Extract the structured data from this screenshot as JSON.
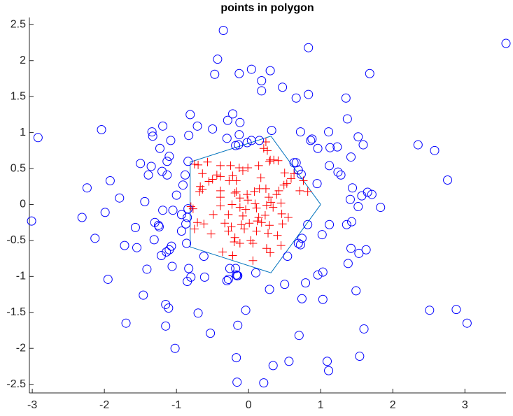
{
  "chart_data": {
    "type": "scatter",
    "title": "points in polygon",
    "xlim": [
      -3.04,
      3.57
    ],
    "ylim": [
      -2.62,
      2.6
    ],
    "xticks": [
      -3,
      -2,
      -1,
      0,
      1,
      2,
      3
    ],
    "yticks": [
      -2.5,
      -2,
      -1.5,
      -1,
      -0.5,
      0,
      0.5,
      1,
      1.5,
      2,
      2.5
    ],
    "grid": false,
    "series": [
      {
        "style": "line",
        "color": "#0072bd",
        "x": [
          1,
          0.31,
          -0.81,
          -0.81,
          0.31,
          1
        ],
        "values": [
          0,
          0.95,
          0.59,
          -0.59,
          -0.95,
          0
        ]
      },
      {
        "style": "plus",
        "color": "#ff0000",
        "x": [
          0.24,
          0.21,
          0.26,
          0.3,
          0.35,
          0.41,
          0.29,
          -0.7,
          -0.57,
          -0.75,
          -0.39,
          -0.25,
          -0.13,
          -0.01,
          -0.08,
          0.14,
          -0.64,
          -0.44,
          -0.39,
          -0.22,
          -0.5,
          -0.27,
          -0.55,
          -0.17,
          0.17,
          0.5,
          0.53,
          0.49,
          0.42,
          0.39,
          0.59,
          0.63,
          0.76,
          0.71,
          0.82,
          -0.67,
          -0.68,
          -0.39,
          -0.19,
          -0.02,
          0.08,
          0.15,
          0.24,
          -0.39,
          -0.12,
          -0.01,
          0.28,
          -0.8,
          -0.77,
          -0.39,
          -0.23,
          -0.12,
          -0.04,
          0.09,
          0.11,
          0.25,
          0.31,
          0.34,
          0.45,
          -0.49,
          -0.28,
          -0.08,
          0.14,
          0.23,
          0.46,
          0.55,
          -0.71,
          -0.62,
          -0.33,
          -0.24,
          -0.1,
          0.01,
          0.12,
          0.18,
          0.29,
          0.47,
          -0.75,
          -0.52,
          -0.28,
          -0.19,
          -0.06,
          0.11,
          0.27,
          0.4,
          0.03,
          -0.2,
          -0.12,
          0.06,
          0.25,
          0.3,
          0.45,
          -0.36,
          -0.22,
          0.06,
          -0.64,
          -0.17
        ],
        "values": [
          0.87,
          0.78,
          0.75,
          0.62,
          0.62,
          0.61,
          0.6,
          0.55,
          0.59,
          0.56,
          0.54,
          0.54,
          0.51,
          0.51,
          0.47,
          0.54,
          0.43,
          0.41,
          0.39,
          0.4,
          0.35,
          0.33,
          0.32,
          0.33,
          0.37,
          0.44,
          0.29,
          0.27,
          0.19,
          0.14,
          0.36,
          0.43,
          0.33,
          0.19,
          0.18,
          0.25,
          0.18,
          0.19,
          0.16,
          0.14,
          0.18,
          0.22,
          0.22,
          0.1,
          0.09,
          0.06,
          0.1,
          -0.03,
          -0.06,
          -0.02,
          0,
          -0.04,
          -0.07,
          0.01,
          -0.05,
          -0.01,
          0.03,
          -0.04,
          0.02,
          -0.14,
          -0.14,
          -0.16,
          -0.18,
          -0.15,
          -0.13,
          -0.18,
          -0.25,
          -0.27,
          -0.26,
          -0.31,
          -0.28,
          -0.26,
          -0.23,
          -0.25,
          -0.29,
          -0.27,
          -0.34,
          -0.41,
          -0.37,
          -0.46,
          -0.34,
          -0.37,
          -0.4,
          -0.43,
          -0.5,
          -0.52,
          -0.54,
          -0.54,
          -0.61,
          -0.67,
          -0.57,
          -0.66,
          -0.71,
          -0.78,
          0.21,
          0.18
        ]
      },
      {
        "style": "circle",
        "color": "#0000ff",
        "x": [
          -0.35,
          0.83,
          3.57,
          -0.43,
          -0.47,
          -0.13,
          0.04,
          0.3,
          0.18,
          0.18,
          0.47,
          1.68,
          0.66,
          0.83,
          1.35,
          -0.81,
          -0.22,
          -0.29,
          -0.12,
          1.37,
          -2.04,
          -2.92,
          -1.19,
          -1.34,
          -1.33,
          -0.71,
          -0.83,
          -0.5,
          -0.13,
          0.32,
          0.72,
          1.11,
          -0.3,
          -0.14,
          -0.18,
          -0.02,
          0.04,
          0.15,
          0.86,
          0.88,
          1.52,
          1.59,
          2.35,
          2.58,
          -1.08,
          -1.23,
          0.96,
          1.13,
          1.23,
          1.42,
          -1.1,
          -1.13,
          -1.5,
          -1.35,
          -0.84,
          0.66,
          0.63,
          1.12,
          0.69,
          -1.2,
          -1.13,
          -1.39,
          1.24,
          1.28,
          0.73,
          -0.88,
          -1.92,
          0.95,
          2.76,
          -0.91,
          -2.24,
          1.44,
          1.65,
          1.71,
          1.57,
          -1.79,
          1.41,
          -1.44,
          -1.0,
          1.52,
          1.83,
          -1.19,
          -1.99,
          -0.93,
          -0.84,
          -1.05,
          -0.85,
          -3.01,
          -2.31,
          -1.57,
          -1.3,
          -1.25,
          -1.24,
          -0.87,
          1.43,
          1.12,
          1.36,
          0.82,
          -0.93,
          1.02,
          -2.13,
          -1.31,
          -1.72,
          -1.55,
          -1.07,
          -1.1,
          -1.14,
          -0.86,
          0.72,
          0.69,
          0.74,
          1.42,
          1.63,
          1.53,
          -1.21,
          -0.62,
          0.54,
          -1.06,
          1.38,
          -0.83,
          -0.26,
          -0.18,
          1.03,
          -0.8,
          -0.61,
          -0.17,
          -0.16,
          -0.15,
          0.1,
          0.96,
          -0.85,
          -0.28,
          -0.3,
          0.79,
          -1.95,
          -1.41,
          0.5,
          0.29,
          1.49,
          -1.46,
          0.74,
          1.03,
          -1.15,
          -1.11,
          -0.7,
          -0.04,
          2.51,
          2.88,
          3.03,
          -1.7,
          -1.15,
          -0.15,
          1.6,
          -0.53,
          0.7,
          -1.02,
          -0.17,
          1.54,
          0.56,
          1.09,
          0.34,
          1.11,
          -0.16,
          0.21
        ],
        "values": [
          2.42,
          2.18,
          2.24,
          2.02,
          1.81,
          1.82,
          1.88,
          1.86,
          1.72,
          1.58,
          1.63,
          1.82,
          1.48,
          1.53,
          1.48,
          1.25,
          1.26,
          1.17,
          1.14,
          1.19,
          1.04,
          0.93,
          1.09,
          1.01,
          0.95,
          1.09,
          0.96,
          1.05,
          0.97,
          1.03,
          1.01,
          1.01,
          0.92,
          0.83,
          0.82,
          0.86,
          0.89,
          0.89,
          0.89,
          0.91,
          0.94,
          0.83,
          0.83,
          0.75,
          0.89,
          0.78,
          0.78,
          0.79,
          0.8,
          0.66,
          0.67,
          0.6,
          0.57,
          0.53,
          0.6,
          0.58,
          0.58,
          0.54,
          0.48,
          0.46,
          0.41,
          0.41,
          0.45,
          0.41,
          0.42,
          0.41,
          0.33,
          0.29,
          0.34,
          0.27,
          0.23,
          0.23,
          0.17,
          0.14,
          0.12,
          0.09,
          0.07,
          0.04,
          0.13,
          -0.03,
          -0.04,
          -0.08,
          -0.11,
          -0.14,
          -0.06,
          -0.08,
          -0.18,
          -0.23,
          -0.18,
          -0.32,
          -0.25,
          -0.29,
          -0.31,
          -0.27,
          -0.24,
          -0.28,
          -0.28,
          -0.28,
          -0.37,
          -0.42,
          -0.47,
          -0.49,
          -0.57,
          -0.6,
          -0.58,
          -0.63,
          -0.66,
          -0.54,
          -0.56,
          -0.54,
          -0.47,
          -0.61,
          -0.63,
          -0.68,
          -0.71,
          -0.72,
          -0.72,
          -0.86,
          -0.82,
          -0.89,
          -0.89,
          -0.89,
          -0.94,
          -1.01,
          -1.01,
          -0.98,
          -0.99,
          -0.99,
          -0.95,
          -0.98,
          -1.07,
          -1.04,
          -1.06,
          -1.09,
          -1.04,
          -0.9,
          -1.11,
          -1.18,
          -1.2,
          -1.26,
          -1.31,
          -1.32,
          -1.39,
          -1.44,
          -1.51,
          -1.47,
          -1.47,
          -1.46,
          -1.65,
          -1.65,
          -1.69,
          -1.68,
          -1.73,
          -1.79,
          -1.82,
          -2.0,
          -2.13,
          -2.11,
          -2.18,
          -2.18,
          -2.24,
          -2.31,
          -2.47,
          -2.48
        ]
      }
    ]
  }
}
